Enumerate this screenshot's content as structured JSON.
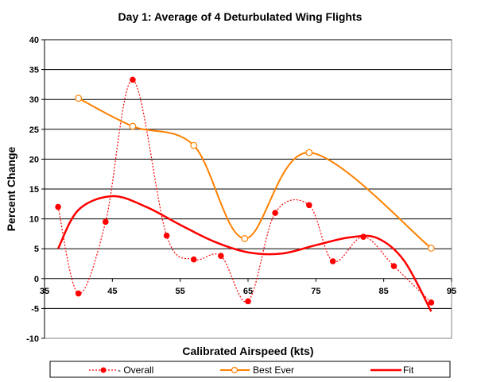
{
  "chart_data": {
    "type": "line",
    "title": "Day 1: Average of 4 Deturbulated Wing Flights",
    "xlabel": "Calibrated Airspeed (kts)",
    "ylabel": "Percent Change",
    "xlim": [
      35,
      95
    ],
    "ylim": [
      -10,
      40
    ],
    "x_ticks": [
      35,
      45,
      55,
      65,
      75,
      85,
      95
    ],
    "y_ticks": [
      -10,
      -5,
      0,
      5,
      10,
      15,
      20,
      25,
      30,
      35,
      40
    ],
    "x_tick_labels": [
      "35",
      "45",
      "55",
      "65",
      "75",
      "85",
      "95"
    ],
    "y_tick_labels": [
      "-10",
      "-5",
      "0",
      "5",
      "10",
      "15",
      "20",
      "25",
      "30",
      "35",
      "40"
    ],
    "grid": "horizontal",
    "legend_position": "bottom",
    "series": [
      {
        "name": "Overall",
        "color": "#ff0000",
        "line_style": "dotted",
        "marker": "filled-circle",
        "x": [
          37,
          40,
          44,
          48,
          53,
          57,
          61,
          65,
          69,
          74,
          77.5,
          82,
          86.5,
          92
        ],
        "y": [
          12,
          -2.5,
          9.5,
          33.3,
          7.2,
          3.2,
          3.8,
          -3.8,
          11,
          12.3,
          2.9,
          7,
          2.1,
          -4
        ]
      },
      {
        "name": "Best Ever",
        "color": "#ff8000",
        "line_style": "solid",
        "marker": "open-circle",
        "x": [
          40,
          48,
          57,
          64.5,
          74,
          92
        ],
        "y": [
          30.2,
          25.5,
          22.3,
          6.7,
          21.1,
          5.1
        ]
      },
      {
        "name": "Fit",
        "color": "#ff0000",
        "line_style": "solid-thick",
        "marker": "none",
        "x": [
          37,
          40,
          45,
          50,
          55,
          60,
          65,
          70,
          75,
          80,
          84,
          88,
          92
        ],
        "y": [
          5,
          11.5,
          13.8,
          12,
          9,
          6.2,
          4.4,
          4.2,
          5.6,
          6.9,
          6.8,
          3,
          -5.5
        ]
      }
    ]
  },
  "legend": {
    "items": [
      "- Overall",
      "Best Ever",
      "Fit"
    ]
  }
}
